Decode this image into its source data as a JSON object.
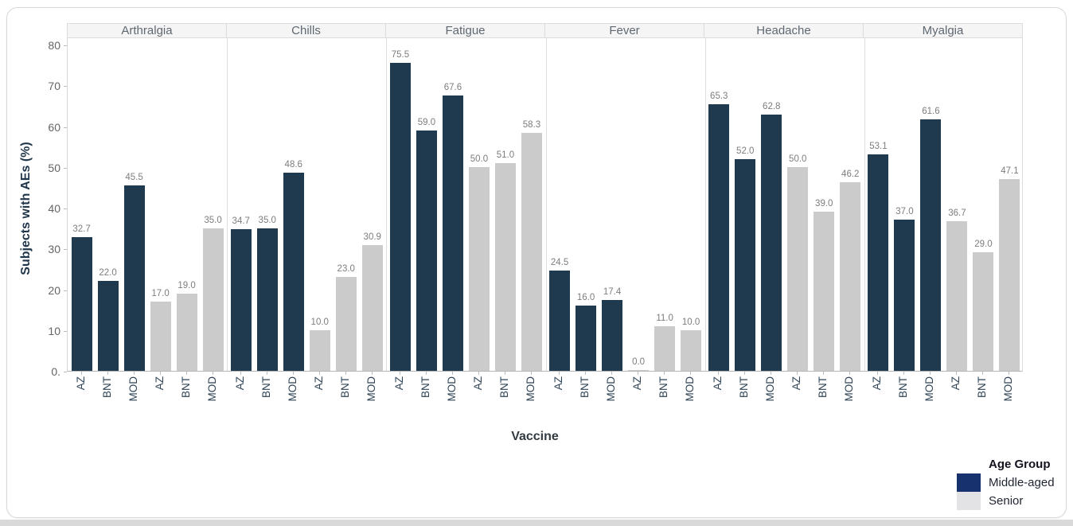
{
  "chart_data": {
    "type": "bar",
    "facets": [
      "Arthralgia",
      "Chills",
      "Fatigue",
      "Fever",
      "Headache",
      "Myalgia"
    ],
    "categories": [
      "AZ",
      "BNT",
      "MOD"
    ],
    "series": [
      {
        "name": "Middle-aged",
        "bar_color": "#1f3a4e",
        "legend_color": "#16316e",
        "values": {
          "Arthralgia": [
            32.7,
            22.0,
            45.5
          ],
          "Chills": [
            34.7,
            35.0,
            48.6
          ],
          "Fatigue": [
            75.5,
            59.0,
            67.6
          ],
          "Fever": [
            24.5,
            16.0,
            17.4
          ],
          "Headache": [
            65.3,
            52.0,
            62.8
          ],
          "Myalgia": [
            53.1,
            37.0,
            61.6
          ]
        }
      },
      {
        "name": "Senior",
        "bar_color": "#cbcbcb",
        "legend_color": "#e3e3e6",
        "values": {
          "Arthralgia": [
            17.0,
            19.0,
            35.0
          ],
          "Chills": [
            10.0,
            23.0,
            30.9
          ],
          "Fatigue": [
            50.0,
            51.0,
            58.3
          ],
          "Fever": [
            0.0,
            11.0,
            10.0
          ],
          "Headache": [
            50.0,
            39.0,
            46.2
          ],
          "Myalgia": [
            36.7,
            29.0,
            47.1
          ]
        }
      }
    ],
    "ylabel": "Subjects with AEs (%)",
    "xlabel": "Vaccine",
    "ylim": [
      0,
      80
    ],
    "ytick_values": [
      0,
      10,
      20,
      30,
      40,
      50,
      60,
      70,
      80
    ],
    "ytick_labels": [
      "0.",
      "10",
      "20",
      "30",
      "40",
      "50",
      "60",
      "70",
      "80"
    ],
    "grid": false,
    "value_labels_shown": true,
    "legend": {
      "title": "Age Group",
      "entries": [
        "Middle-aged",
        "Senior"
      ],
      "position": "bottom-right"
    }
  },
  "frame": {
    "card_background": "#ffffff",
    "card_border": "#d8d8d8",
    "bottom_strip_color": "#d9d9d9"
  }
}
